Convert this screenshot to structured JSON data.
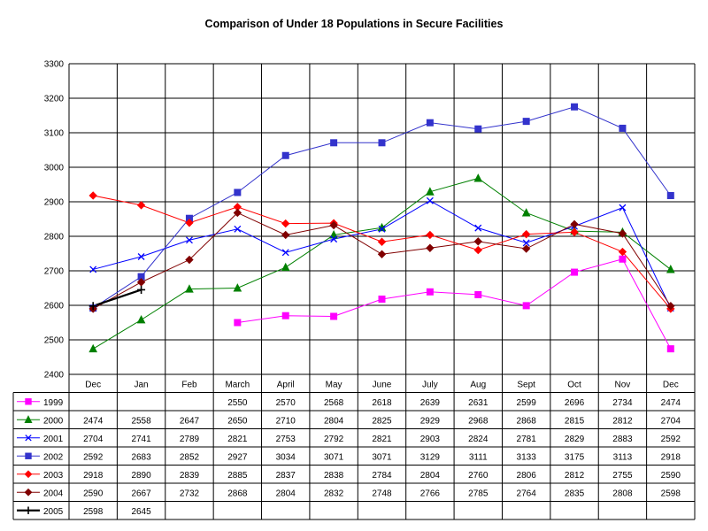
{
  "chart_data": {
    "type": "line",
    "title": "Comparison of Under 18 Populations in Secure Facilities",
    "xlabel": "",
    "ylabel": "",
    "categories": [
      "Dec",
      "Jan",
      "Feb",
      "March",
      "April",
      "May",
      "June",
      "July",
      "Aug",
      "Sept",
      "Oct",
      "Nov",
      "Dec"
    ],
    "ylim": [
      2400,
      3300
    ],
    "yticks": [
      2400,
      2500,
      2600,
      2700,
      2800,
      2900,
      3000,
      3100,
      3200,
      3300
    ],
    "grid": true,
    "legend": "data-table-below",
    "series": [
      {
        "name": "1999",
        "color": "#ff00ff",
        "marker": "square",
        "values": [
          null,
          null,
          null,
          2550,
          2570,
          2568,
          2618,
          2639,
          2631,
          2599,
          2696,
          2734,
          2474
        ]
      },
      {
        "name": "2000",
        "color": "#008000",
        "marker": "triangle",
        "values": [
          2474,
          2558,
          2647,
          2650,
          2710,
          2804,
          2825,
          2929,
          2968,
          2868,
          2815,
          2812,
          2704
        ]
      },
      {
        "name": "2001",
        "color": "#0000ff",
        "marker": "x",
        "values": [
          2704,
          2741,
          2789,
          2821,
          2753,
          2792,
          2821,
          2903,
          2824,
          2781,
          2829,
          2883,
          2592
        ]
      },
      {
        "name": "2002",
        "color": "#3333cc",
        "marker": "square",
        "values": [
          2592,
          2683,
          2852,
          2927,
          3034,
          3071,
          3071,
          3129,
          3111,
          3133,
          3175,
          3113,
          2918
        ]
      },
      {
        "name": "2003",
        "color": "#ff0000",
        "marker": "diamond",
        "values": [
          2918,
          2890,
          2839,
          2885,
          2837,
          2838,
          2784,
          2804,
          2760,
          2806,
          2812,
          2755,
          2590
        ]
      },
      {
        "name": "2004",
        "color": "#800000",
        "marker": "diamond",
        "values": [
          2590,
          2667,
          2732,
          2868,
          2804,
          2832,
          2748,
          2766,
          2785,
          2764,
          2835,
          2808,
          2598
        ]
      },
      {
        "name": "2005",
        "color": "#000000",
        "marker": "plus",
        "values": [
          2598,
          2645,
          null,
          null,
          null,
          null,
          null,
          null,
          null,
          null,
          null,
          null,
          null
        ]
      }
    ]
  }
}
